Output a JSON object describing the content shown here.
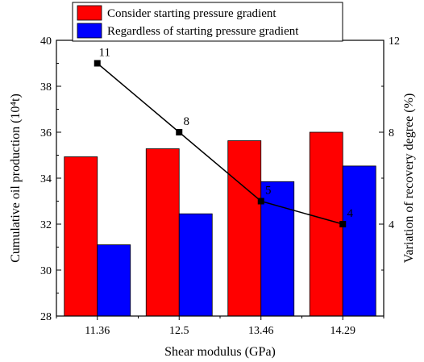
{
  "chart_data": {
    "type": "bar",
    "categories": [
      "11.36",
      "12.5",
      "13.46",
      "14.29"
    ],
    "xlabel": "Shear modulus (GPa)",
    "ylabel": "Cumulative oil production (10⁴t)",
    "y2label": "Variation of recovery degree (%)",
    "ylim": [
      28,
      40
    ],
    "yticks": [
      "28",
      "30",
      "32",
      "34",
      "36",
      "38",
      "40"
    ],
    "y2lim": [
      0,
      12
    ],
    "y2ticks": [
      "4",
      "8",
      "12"
    ],
    "legend_position": "top",
    "series": [
      {
        "name": "Consider starting pressure gradient",
        "type": "bar",
        "axis": "left",
        "color": "#ff0000",
        "values": [
          34.93,
          35.28,
          35.63,
          36.0
        ]
      },
      {
        "name": "Regardless of starting pressure gradient",
        "type": "bar",
        "axis": "left",
        "color": "#0000ff",
        "values": [
          31.1,
          32.45,
          33.85,
          34.53
        ]
      },
      {
        "name": "",
        "type": "line",
        "axis": "right",
        "color": "#000000",
        "values": [
          11,
          8,
          5,
          4
        ],
        "labels": [
          "11",
          "8",
          "5",
          "4"
        ]
      }
    ]
  }
}
